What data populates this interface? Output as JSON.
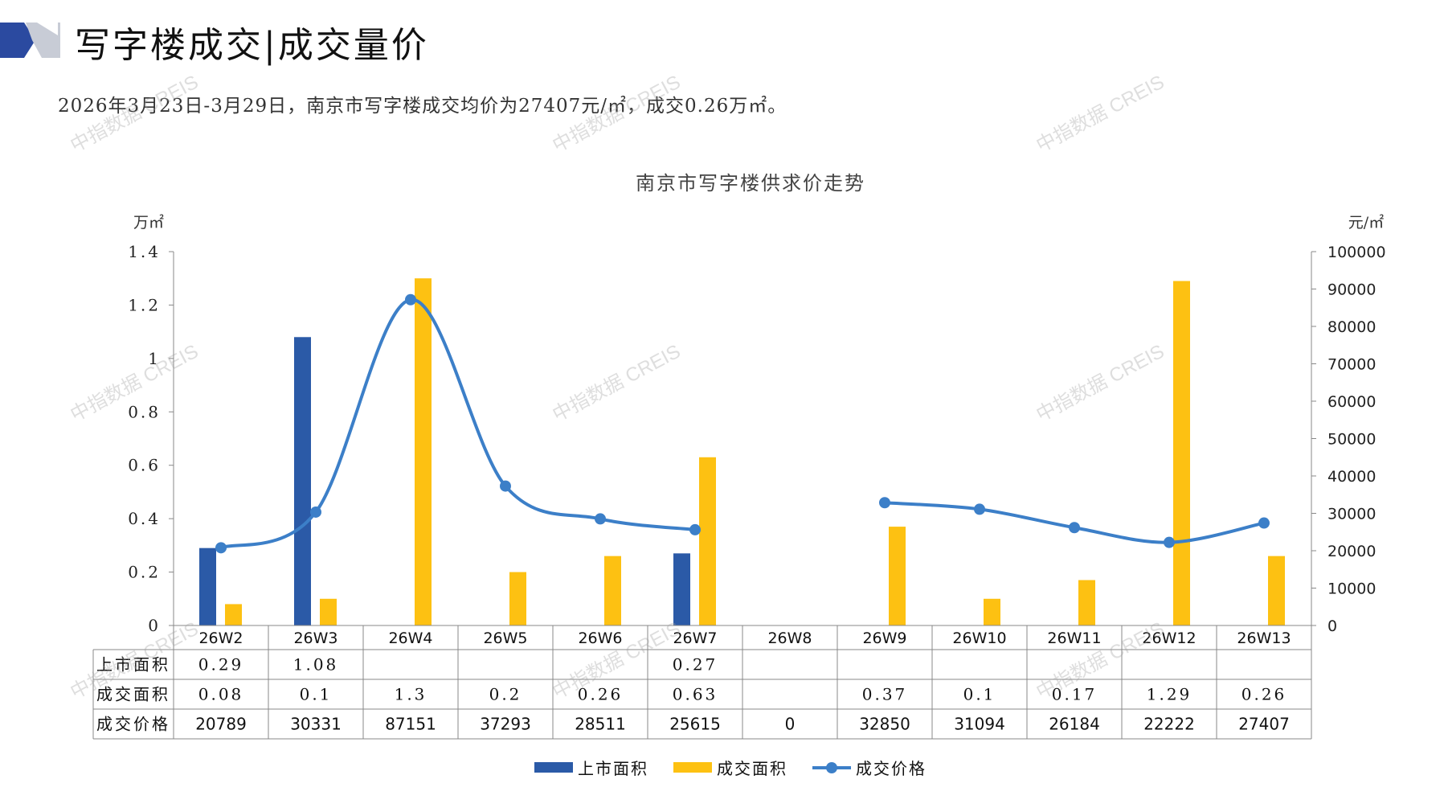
{
  "header": {
    "title": "写字楼成交|成交量价",
    "summary": "2026年3月23日-3月29日，南京市写字楼成交均价为27407元/㎡，成交0.26万㎡。"
  },
  "watermark": "中指数据 CREIS",
  "colors": {
    "listed": "#2b5aa7",
    "deal_area": "#fdc112",
    "price": "#3c7fc8",
    "logo_dark": "#2b4aa0",
    "logo_grey": "#c8ccd6"
  },
  "chart_data": {
    "type": "bar",
    "title": "南京市写字楼供求价走势",
    "left_unit": "万㎡",
    "right_unit": "元/㎡",
    "y_left_lim": [
      0,
      1.4
    ],
    "y_left_ticks": [
      "1.4",
      "1.2",
      "1",
      "0.8",
      "0.6",
      "0.4",
      "0.2",
      "0"
    ],
    "y_right_lim": [
      0,
      100000
    ],
    "y_right_ticks": [
      "100000",
      "90000",
      "80000",
      "70000",
      "60000",
      "50000",
      "40000",
      "30000",
      "20000",
      "10000",
      "0"
    ],
    "categories": [
      "26W2",
      "26W3",
      "26W4",
      "26W5",
      "26W6",
      "26W7",
      "26W8",
      "26W9",
      "26W10",
      "26W11",
      "26W12",
      "26W13"
    ],
    "series": [
      {
        "name": "上市面积",
        "type": "bar",
        "axis": "left",
        "values": [
          0.29,
          1.08,
          null,
          null,
          null,
          0.27,
          null,
          null,
          null,
          null,
          null,
          null
        ]
      },
      {
        "name": "成交面积",
        "type": "bar",
        "axis": "left",
        "values": [
          0.08,
          0.1,
          1.3,
          0.2,
          0.26,
          0.63,
          null,
          0.37,
          0.1,
          0.17,
          1.29,
          0.26
        ]
      },
      {
        "name": "成交价格",
        "type": "line",
        "axis": "right",
        "values": [
          20789,
          30331,
          87151,
          37293,
          28511,
          25615,
          0,
          32850,
          31094,
          26184,
          22222,
          27407
        ]
      }
    ],
    "table_rows": [
      {
        "label": "上市面积",
        "cells": [
          "0.29",
          "1.08",
          "",
          "",
          "",
          "0.27",
          "",
          "",
          "",
          "",
          "",
          ""
        ]
      },
      {
        "label": "成交面积",
        "cells": [
          "0.08",
          "0.1",
          "1.3",
          "0.2",
          "0.26",
          "0.63",
          "",
          "0.37",
          "0.1",
          "0.17",
          "1.29",
          "0.26"
        ]
      },
      {
        "label": "成交价格",
        "cells": [
          "20789",
          "30331",
          "87151",
          "37293",
          "28511",
          "25615",
          "0",
          "32850",
          "31094",
          "26184",
          "22222",
          "27407"
        ]
      }
    ],
    "legend_position": "bottom-center"
  }
}
